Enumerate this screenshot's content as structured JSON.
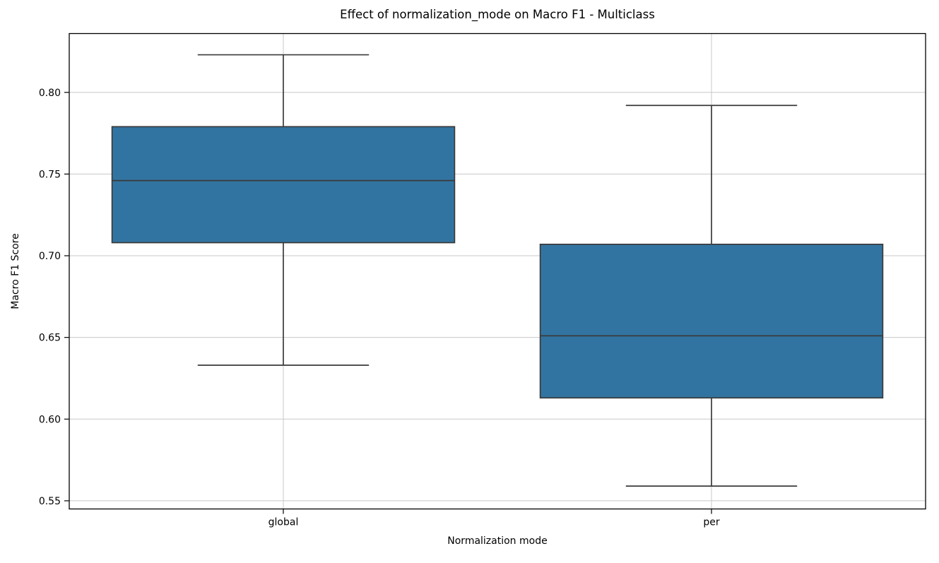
{
  "chart_data": {
    "type": "box",
    "title": "Effect of normalization_mode on Macro F1 - Multiclass",
    "xlabel": "Normalization mode",
    "ylabel": "Macro F1 Score",
    "categories": [
      "global",
      "per"
    ],
    "series": [
      {
        "name": "global",
        "whisker_low": 0.633,
        "q1": 0.708,
        "median": 0.746,
        "q3": 0.779,
        "whisker_high": 0.823
      },
      {
        "name": "per",
        "whisker_low": 0.559,
        "q1": 0.613,
        "median": 0.651,
        "q3": 0.707,
        "whisker_high": 0.792
      }
    ],
    "y_ticks": [
      0.55,
      0.6,
      0.65,
      0.7,
      0.75,
      0.8
    ],
    "y_tick_labels": [
      "0.55",
      "0.60",
      "0.65",
      "0.70",
      "0.75",
      "0.80"
    ],
    "ylim": [
      0.545,
      0.836
    ],
    "xlim": [
      -0.5,
      1.5
    ],
    "grid": true,
    "legend": false,
    "box_width": 0.8,
    "cap_width": 0.4,
    "colors": {
      "box_fill": "#3274a1",
      "box_edge": "#3a3a3a",
      "grid": "#c8c8c8",
      "spine": "#000000",
      "text": "#000000",
      "background": "#ffffff"
    }
  }
}
